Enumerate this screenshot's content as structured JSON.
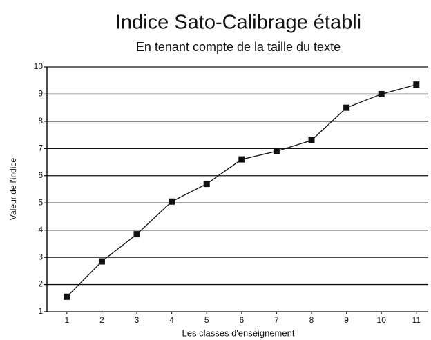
{
  "chart_data": {
    "type": "line",
    "title": "Indice Sato-Calibrage établi",
    "subtitle": "En tenant compte de la taille du texte",
    "x_label": "Les classes d'enseignement",
    "y_label": "Valeur de l'indice",
    "x": [
      1,
      2,
      3,
      4,
      5,
      6,
      7,
      8,
      9,
      10,
      11
    ],
    "series": [
      {
        "name": null,
        "color": "#111111",
        "values": [
          1.55,
          2.85,
          3.85,
          5.05,
          5.7,
          6.6,
          6.9,
          7.3,
          8.5,
          9.0,
          9.35
        ]
      }
    ],
    "xlim": [
      0.43,
      11.34
    ],
    "xticks": [
      1,
      2,
      3,
      4,
      5,
      6,
      7,
      8,
      9,
      10,
      11
    ],
    "ylim": [
      1,
      10
    ],
    "yticks": [
      1,
      2,
      3,
      4,
      5,
      6,
      7,
      8,
      9,
      10
    ],
    "grid": true
  }
}
